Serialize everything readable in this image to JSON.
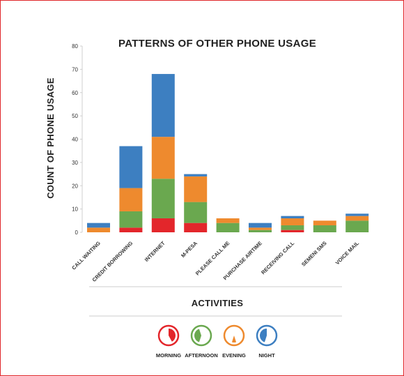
{
  "chart_data": {
    "type": "bar",
    "stacked": true,
    "title": "PATTERNS OF OTHER PHONE USAGE",
    "xlabel": "ACTIVITIES",
    "ylabel": "COUNT OF PHONE USAGE",
    "ylim": [
      0,
      80
    ],
    "yticks": [
      0,
      10,
      20,
      30,
      40,
      50,
      60,
      70,
      80
    ],
    "categories": [
      "CALL WAITING",
      "CREDIT BORROWING",
      "INTERNET",
      "M-PESA",
      "PLEASE CALL ME",
      "PURCHASE AIRTIME",
      "RECEIVING CALL",
      "SEMENI SMS",
      "VOICE MAIL"
    ],
    "series": [
      {
        "name": "MORNING",
        "color": "#e3262b",
        "values": [
          0,
          2,
          6,
          4,
          0,
          0,
          1,
          0,
          0
        ]
      },
      {
        "name": "AFTERNOON",
        "color": "#6aa84f",
        "values": [
          0,
          7,
          17,
          9,
          4,
          1,
          2,
          3,
          5
        ]
      },
      {
        "name": "EVENING",
        "color": "#ee8a2e",
        "values": [
          2,
          10,
          18,
          11,
          2,
          1,
          3,
          2,
          2
        ]
      },
      {
        "name": "NIGHT",
        "color": "#3d7fc1",
        "values": [
          2,
          18,
          27,
          1,
          0,
          2,
          1,
          0,
          1
        ]
      }
    ],
    "legend_position": "bottom",
    "grid": false
  }
}
